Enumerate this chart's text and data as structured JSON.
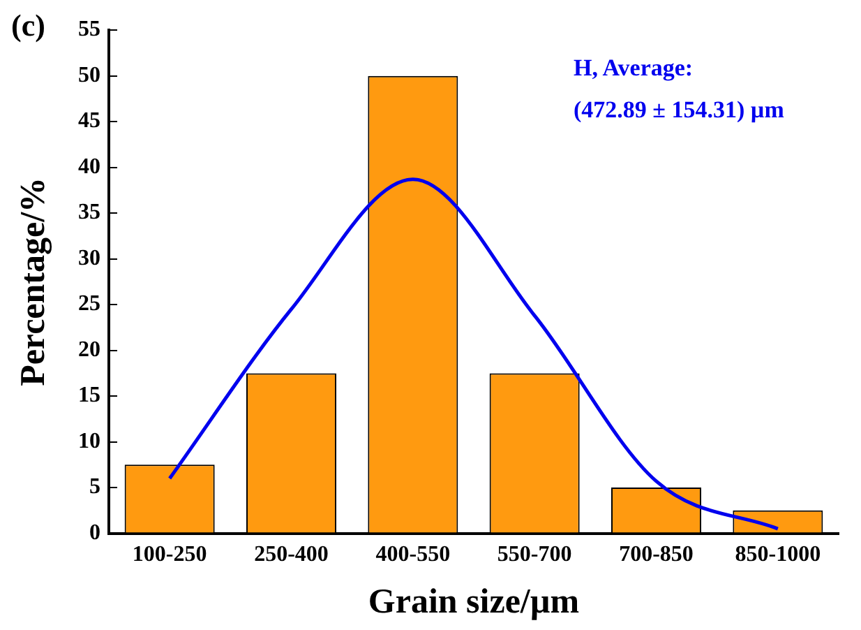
{
  "chart_data": {
    "type": "bar",
    "xlabel": "Grain size/µm",
    "ylabel": "Percentage/%",
    "categories": [
      "100-250",
      "250-400",
      "400-550",
      "550-700",
      "700-850",
      "850-1000"
    ],
    "series": [
      {
        "color": "#ff9a10",
        "values": [
          7.5,
          17.5,
          50,
          17.5,
          5,
          2.5
        ]
      },
      {
        "type": "line",
        "color": "#0000ee",
        "marker": "none",
        "values": [
          6.0,
          24.5,
          38.7,
          23.8,
          5.7,
          0.5
        ]
      }
    ],
    "ylim": [
      0,
      55
    ],
    "yticks": [
      0,
      5,
      10,
      15,
      20,
      25,
      30,
      35,
      40,
      45,
      50,
      55
    ],
    "grid": false,
    "legend": false,
    "annotations": [
      "(c)",
      "H, Average:",
      "(472.89 ± 154.31) µm"
    ]
  }
}
